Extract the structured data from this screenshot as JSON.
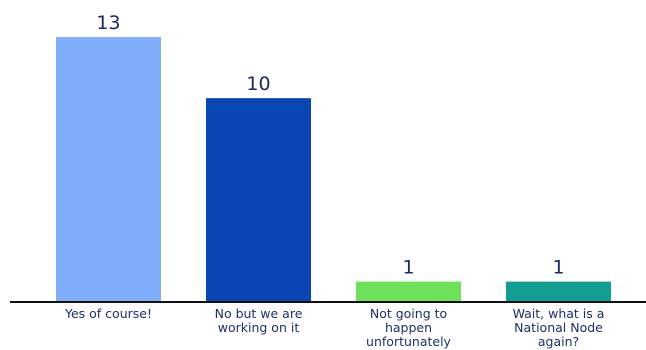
{
  "chart_data": {
    "type": "bar",
    "categories": [
      [
        "Yes of course!"
      ],
      [
        "No but we are",
        "working on it"
      ],
      [
        "Not going to",
        "happen",
        "unfortunately"
      ],
      [
        "Wait, what is a",
        "National Node",
        "again?"
      ]
    ],
    "values": [
      13,
      10,
      1,
      1
    ],
    "colors": [
      "#7fadfa",
      "#0a47b5",
      "#6ee05a",
      "#139e93"
    ],
    "ylim": [
      0,
      13
    ],
    "grid": false,
    "legend": "none",
    "title": "",
    "xlabel": "",
    "ylabel": ""
  }
}
